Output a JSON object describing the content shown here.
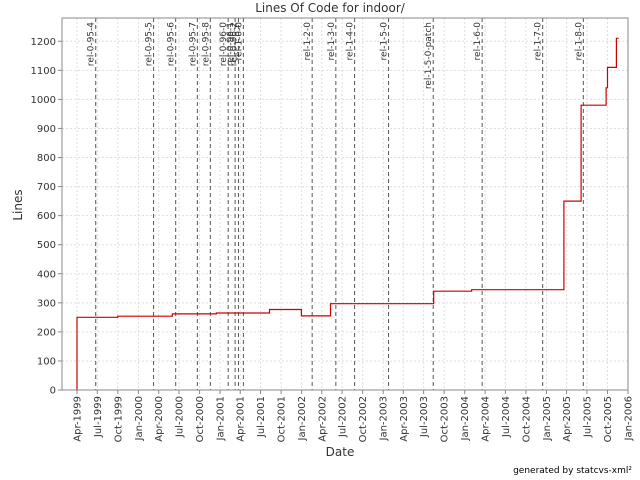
{
  "chart_data": {
    "type": "line",
    "title": "Lines Of Code for indoor/",
    "xlabel": "Date",
    "ylabel": "Lines",
    "ylim": [
      0,
      1280
    ],
    "xlim": [
      "1999-01-24",
      "2006-01-01"
    ],
    "grid": true,
    "colors": {
      "series": "#cc0000",
      "release_line": "#555555",
      "grid": "#dddddd"
    },
    "y_ticks": [
      0,
      100,
      200,
      300,
      400,
      500,
      600,
      700,
      800,
      900,
      1000,
      1100,
      1200
    ],
    "x_ticks": [
      {
        "date": "1999-04-01",
        "label": "Apr-1999"
      },
      {
        "date": "1999-07-01",
        "label": "Jul-1999"
      },
      {
        "date": "1999-10-01",
        "label": "Oct-1999"
      },
      {
        "date": "2000-01-01",
        "label": "Jan-2000"
      },
      {
        "date": "2000-04-01",
        "label": "Apr-2000"
      },
      {
        "date": "2000-07-01",
        "label": "Jul-2000"
      },
      {
        "date": "2000-10-01",
        "label": "Oct-2000"
      },
      {
        "date": "2001-01-01",
        "label": "Jan-2001"
      },
      {
        "date": "2001-04-01",
        "label": "Apr-2001"
      },
      {
        "date": "2001-07-01",
        "label": "Jul-2001"
      },
      {
        "date": "2001-10-01",
        "label": "Oct-2001"
      },
      {
        "date": "2002-01-01",
        "label": "Jan-2002"
      },
      {
        "date": "2002-04-01",
        "label": "Apr-2002"
      },
      {
        "date": "2002-07-01",
        "label": "Jul-2002"
      },
      {
        "date": "2002-10-01",
        "label": "Oct-2002"
      },
      {
        "date": "2003-01-01",
        "label": "Jan-2003"
      },
      {
        "date": "2003-04-01",
        "label": "Apr-2003"
      },
      {
        "date": "2003-07-01",
        "label": "Jul-2003"
      },
      {
        "date": "2003-10-01",
        "label": "Oct-2003"
      },
      {
        "date": "2004-01-01",
        "label": "Jan-2004"
      },
      {
        "date": "2004-04-01",
        "label": "Apr-2004"
      },
      {
        "date": "2004-07-01",
        "label": "Jul-2004"
      },
      {
        "date": "2004-10-01",
        "label": "Oct-2004"
      },
      {
        "date": "2005-01-01",
        "label": "Jan-2005"
      },
      {
        "date": "2005-04-01",
        "label": "Apr-2005"
      },
      {
        "date": "2005-07-01",
        "label": "Jul-2005"
      },
      {
        "date": "2005-10-01",
        "label": "Oct-2005"
      },
      {
        "date": "2006-01-01",
        "label": "Jan-2006"
      }
    ],
    "releases": [
      {
        "date": "1999-06-24",
        "label": "rel-0-95-4"
      },
      {
        "date": "2000-03-09",
        "label": "rel-0-95-5"
      },
      {
        "date": "2000-06-16",
        "label": "rel-0-95-6"
      },
      {
        "date": "2000-09-21",
        "label": "rel-0-95-7"
      },
      {
        "date": "2000-11-18",
        "label": "rel-0-95-8"
      },
      {
        "date": "2001-02-06",
        "label": "rel-0-96-0"
      },
      {
        "date": "2001-03-09",
        "label": "rel-0-96-1"
      },
      {
        "date": "2001-03-24",
        "label": "rel-0-96-2"
      },
      {
        "date": "2001-04-15",
        "label": "rel-1-0-0"
      },
      {
        "date": "2002-02-17",
        "label": "rel-1-2-0"
      },
      {
        "date": "2002-06-03",
        "label": "rel-1-3-0"
      },
      {
        "date": "2002-08-26",
        "label": "rel-1-4-0"
      },
      {
        "date": "2003-01-25",
        "label": "rel-1-5-0"
      },
      {
        "date": "2003-08-13",
        "label": "rel-1-5-0-patch"
      },
      {
        "date": "2004-03-19",
        "label": "rel-1-6-0"
      },
      {
        "date": "2004-12-15",
        "label": "rel-1-7-0"
      },
      {
        "date": "2005-06-15",
        "label": "rel-1-8-0"
      }
    ],
    "series": [
      {
        "points": [
          {
            "x": "1999-04-01",
            "y": 0
          },
          {
            "x": "1999-04-01",
            "y": 250
          },
          {
            "x": "1999-10-01",
            "y": 250
          },
          {
            "x": "1999-10-01",
            "y": 254
          },
          {
            "x": "2000-06-01",
            "y": 254
          },
          {
            "x": "2000-06-01",
            "y": 262
          },
          {
            "x": "2000-12-15",
            "y": 262
          },
          {
            "x": "2000-12-15",
            "y": 265
          },
          {
            "x": "2001-08-10",
            "y": 265
          },
          {
            "x": "2001-08-10",
            "y": 277
          },
          {
            "x": "2001-12-31",
            "y": 277
          },
          {
            "x": "2001-12-31",
            "y": 255
          },
          {
            "x": "2002-05-10",
            "y": 255
          },
          {
            "x": "2002-05-10",
            "y": 297
          },
          {
            "x": "2003-08-15",
            "y": 297
          },
          {
            "x": "2003-08-15",
            "y": 340
          },
          {
            "x": "2004-02-01",
            "y": 340
          },
          {
            "x": "2004-02-01",
            "y": 345
          },
          {
            "x": "2005-03-20",
            "y": 345
          },
          {
            "x": "2005-03-20",
            "y": 650
          },
          {
            "x": "2005-06-05",
            "y": 650
          },
          {
            "x": "2005-06-05",
            "y": 980
          },
          {
            "x": "2005-09-25",
            "y": 980
          },
          {
            "x": "2005-09-25",
            "y": 1040
          },
          {
            "x": "2005-10-01",
            "y": 1040
          },
          {
            "x": "2005-10-01",
            "y": 1110
          },
          {
            "x": "2005-11-10",
            "y": 1110
          },
          {
            "x": "2005-11-10",
            "y": 1210
          },
          {
            "x": "2005-11-20",
            "y": 1210
          }
        ]
      }
    ]
  },
  "footer": {
    "credit": "generated by statcvs-xml²"
  }
}
